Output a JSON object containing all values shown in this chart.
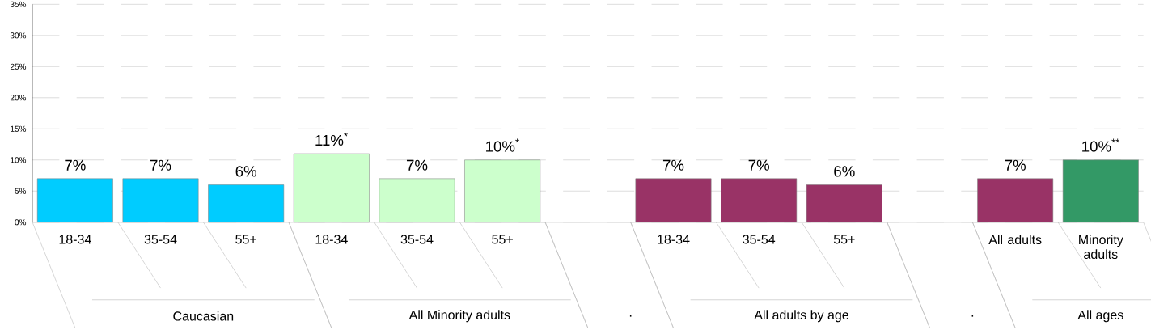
{
  "chart_data": {
    "type": "bar",
    "categories": [
      "18-34",
      "35-54",
      "55+",
      "18-34",
      "35-54",
      "55+",
      null,
      "18-34",
      "35-54",
      "55+",
      null,
      "All adults",
      "Minority adults"
    ],
    "values": [
      7,
      7,
      6,
      11,
      7,
      10,
      null,
      7,
      7,
      6,
      null,
      7,
      10
    ],
    "colors": [
      "#00ccff",
      "#00ccff",
      "#00ccff",
      "#ccffcc",
      "#ccffcc",
      "#ccffcc",
      "#ffffff",
      "#993366",
      "#993366",
      "#993366",
      "#ffffff",
      "#993366",
      "#339966"
    ],
    "value_labels": [
      "7%",
      "7%",
      "6%",
      "11%$^{*}$",
      "7%",
      "10%$^{*}$",
      null,
      "7%",
      "7%",
      "6%",
      null,
      "7%",
      "10%$^{**}$"
    ],
    "annotations": [
      "Caucasian",
      "All Minority adults",
      ".",
      "All adults by age",
      ".",
      "All ages"
    ],
    "ylim": [
      0,
      35
    ],
    "yticks": [
      {
        "value": 0,
        "label": "0%"
      },
      {
        "value": 5,
        "label": "5%"
      },
      {
        "value": 10,
        "label": "10%"
      },
      {
        "value": 15,
        "label": "15%"
      },
      {
        "value": 20,
        "label": "20%"
      },
      {
        "value": 25,
        "label": "25%"
      },
      {
        "value": 30,
        "label": "30%"
      },
      {
        "value": 35,
        "label": "35%"
      }
    ],
    "grid": "y"
  }
}
